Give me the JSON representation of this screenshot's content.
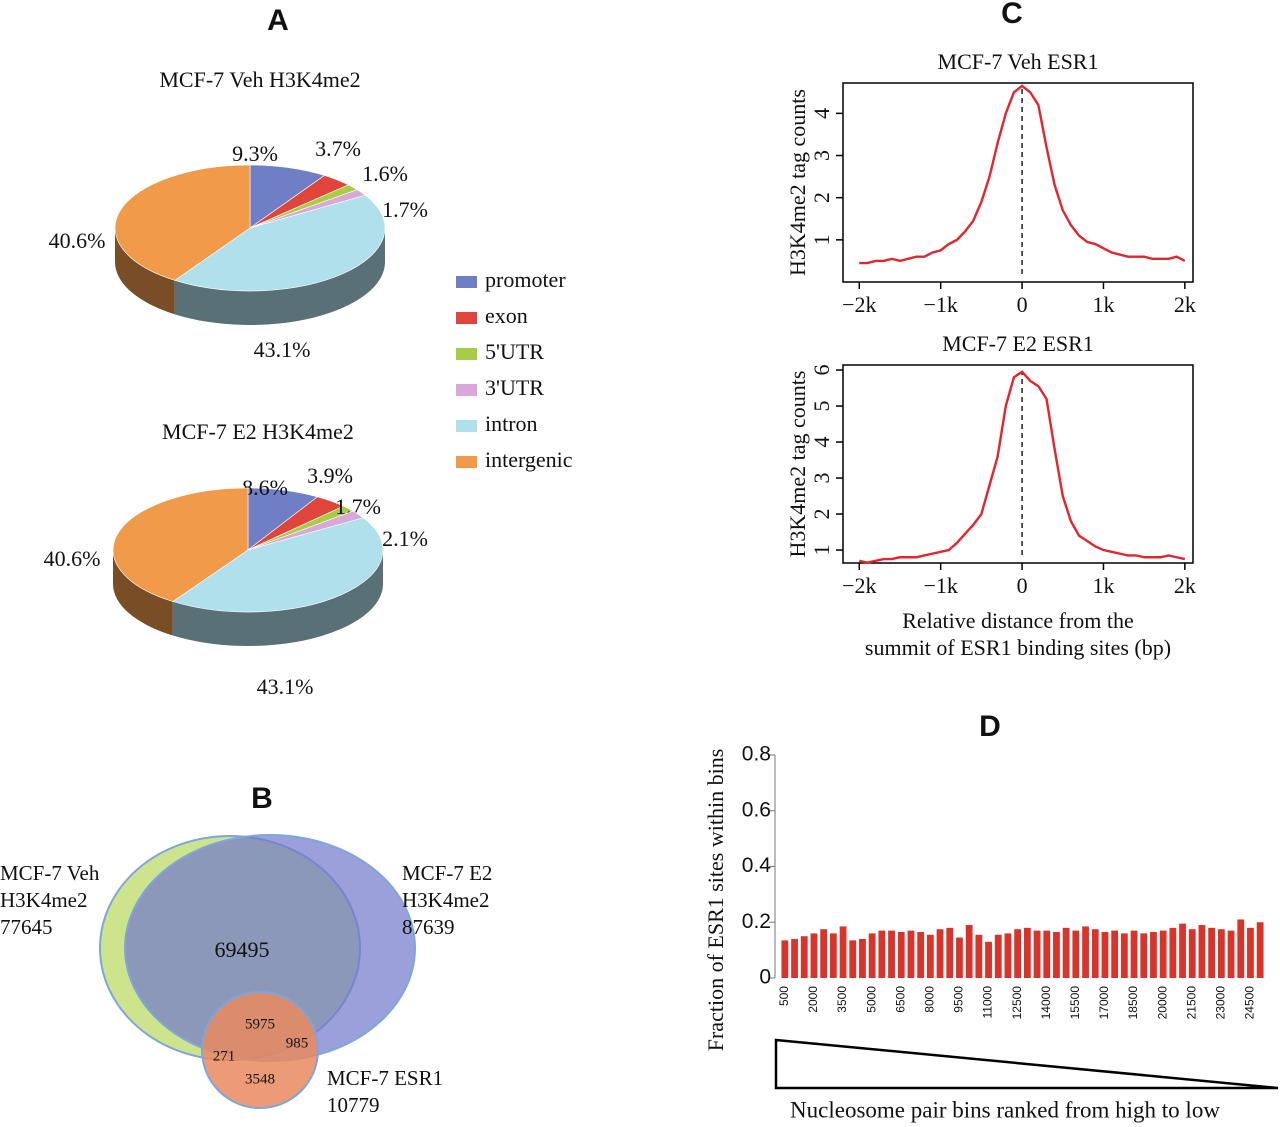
{
  "chart_data": [
    {
      "type": "pie",
      "panel": "A",
      "title": "MCF-7 Veh H3K4me2",
      "categories": [
        "promoter",
        "exon",
        "5'UTR",
        "3'UTR",
        "intron",
        "intergenic"
      ],
      "values": [
        9.3,
        3.7,
        1.6,
        1.7,
        43.1,
        40.6
      ],
      "value_labels": [
        "9.3%",
        "3.7%",
        "1.6%",
        "1.7%",
        "43.1%",
        "40.6%"
      ],
      "colors": [
        "#6f7fc6",
        "#e0453b",
        "#a8cd45",
        "#d9a8d8",
        "#b0e0ec",
        "#f19a4a"
      ],
      "legend": "right"
    },
    {
      "type": "pie",
      "title": "MCF-7 E2 H3K4me2",
      "categories": [
        "promoter",
        "exon",
        "5'UTR",
        "3'UTR",
        "intron",
        "intergenic"
      ],
      "values": [
        8.6,
        3.9,
        1.7,
        2.1,
        43.1,
        40.6
      ],
      "value_labels": [
        "8.6%",
        "3.9%",
        "1.7%",
        "2.1%",
        "43.1%",
        "40.6%"
      ],
      "colors": [
        "#6f7fc6",
        "#e0453b",
        "#a8cd45",
        "#d9a8d8",
        "#b0e0ec",
        "#f19a4a"
      ]
    },
    {
      "type": "venn",
      "panel": "B",
      "sets": [
        {
          "name": "MCF-7 Veh\nH3K4me2",
          "size": 77645,
          "color": "#c5df78"
        },
        {
          "name": "MCF-7 E2\nH3K4me2",
          "size": 87639,
          "color": "#7178cc"
        },
        {
          "name": "MCF-7 ESR1",
          "size": 10779,
          "color": "#e98a5e"
        }
      ],
      "regions": [
        69495,
        5975,
        985,
        271,
        3548
      ]
    },
    {
      "type": "line",
      "panel": "C",
      "title": "MCF-7 Veh ESR1",
      "ylabel": "H3K4me2 tag counts",
      "x": [
        -2000,
        -1900,
        -1800,
        -1700,
        -1600,
        -1500,
        -1400,
        -1300,
        -1200,
        -1100,
        -1000,
        -900,
        -800,
        -700,
        -600,
        -500,
        -400,
        -300,
        -200,
        -100,
        0,
        100,
        200,
        300,
        400,
        500,
        600,
        700,
        800,
        900,
        1000,
        1100,
        1200,
        1300,
        1400,
        1500,
        1600,
        1700,
        1800,
        1900,
        2000
      ],
      "values": [
        0.45,
        0.45,
        0.5,
        0.5,
        0.55,
        0.5,
        0.55,
        0.6,
        0.6,
        0.7,
        0.75,
        0.9,
        1.0,
        1.2,
        1.45,
        1.9,
        2.5,
        3.3,
        4.0,
        4.5,
        4.65,
        4.5,
        4.2,
        3.2,
        2.3,
        1.7,
        1.35,
        1.1,
        0.95,
        0.9,
        0.8,
        0.7,
        0.65,
        0.6,
        0.6,
        0.6,
        0.55,
        0.55,
        0.55,
        0.6,
        0.5
      ],
      "color": "#e3262d",
      "xlim": [
        -2200,
        2100
      ],
      "ylim": [
        0,
        4.72
      ],
      "xticks": [
        {
          "value": -2000,
          "label": "−2k"
        },
        {
          "value": -1000,
          "label": "−1k"
        },
        0,
        {
          "value": 1000,
          "label": "1k"
        },
        {
          "value": 2000,
          "label": "2k"
        }
      ],
      "yticks": [
        1,
        2,
        3,
        4
      ]
    },
    {
      "type": "line",
      "title": "MCF-7 E2 ESR1",
      "ylabel": "H3K4me2 tag counts",
      "xlabel": "Relative distance from the\nsummit of ESR1 binding sites (bp)",
      "x": [
        -2000,
        -1900,
        -1800,
        -1700,
        -1600,
        -1500,
        -1400,
        -1300,
        -1200,
        -1100,
        -1000,
        -900,
        -800,
        -700,
        -600,
        -500,
        -400,
        -300,
        -200,
        -100,
        0,
        100,
        200,
        300,
        400,
        500,
        600,
        700,
        800,
        900,
        1000,
        1100,
        1200,
        1300,
        1400,
        1500,
        1600,
        1700,
        1800,
        1900,
        2000
      ],
      "values": [
        0.7,
        0.65,
        0.7,
        0.75,
        0.75,
        0.8,
        0.8,
        0.8,
        0.85,
        0.9,
        0.95,
        1.0,
        1.2,
        1.45,
        1.7,
        2.0,
        2.8,
        3.6,
        5.0,
        5.8,
        5.95,
        5.7,
        5.55,
        5.2,
        3.8,
        2.5,
        1.8,
        1.4,
        1.25,
        1.1,
        1.0,
        0.95,
        0.9,
        0.85,
        0.85,
        0.8,
        0.8,
        0.8,
        0.85,
        0.8,
        0.75
      ],
      "color": "#e3262d",
      "xlim": [
        -2200,
        2100
      ],
      "ylim": [
        0.64,
        6.14
      ],
      "xticks": [
        {
          "value": -2000,
          "label": "−2k"
        },
        {
          "value": -1000,
          "label": "−1k"
        },
        0,
        {
          "value": 1000,
          "label": "1k"
        },
        {
          "value": 2000,
          "label": "2k"
        }
      ],
      "yticks": [
        1,
        2,
        3,
        4,
        5,
        6
      ]
    },
    {
      "type": "bar",
      "panel": "D",
      "ylabel": "Fraction of ESR1 sites within bins",
      "xlabel": "Nucleosome pair bins ranked from high to low",
      "categories": [
        "500",
        null,
        null,
        "2000",
        null,
        null,
        "3500",
        null,
        null,
        "5000",
        null,
        null,
        "6500",
        null,
        null,
        "8000",
        null,
        null,
        "9500",
        null,
        null,
        "11000",
        null,
        null,
        "12500",
        null,
        null,
        "14000",
        null,
        null,
        "15500",
        null,
        null,
        "17000",
        null,
        null,
        "18500",
        null,
        null,
        "20000",
        null,
        null,
        "21500",
        null,
        null,
        "23000",
        null,
        null,
        "24500",
        null
      ],
      "values": [
        0.135,
        0.14,
        0.15,
        0.16,
        0.175,
        0.16,
        0.185,
        0.135,
        0.14,
        0.16,
        0.17,
        0.17,
        0.165,
        0.17,
        0.165,
        0.155,
        0.175,
        0.18,
        0.145,
        0.19,
        0.155,
        0.13,
        0.155,
        0.16,
        0.175,
        0.18,
        0.17,
        0.17,
        0.165,
        0.18,
        0.17,
        0.185,
        0.175,
        0.165,
        0.17,
        0.16,
        0.17,
        0.16,
        0.165,
        0.17,
        0.18,
        0.195,
        0.175,
        0.19,
        0.18,
        0.175,
        0.17,
        0.21,
        0.18,
        0.2
      ],
      "color": "#d9342b",
      "ylim": [
        0,
        0.8
      ],
      "yticks": [
        0,
        0.2,
        0.4,
        0.6,
        0.8
      ]
    }
  ]
}
